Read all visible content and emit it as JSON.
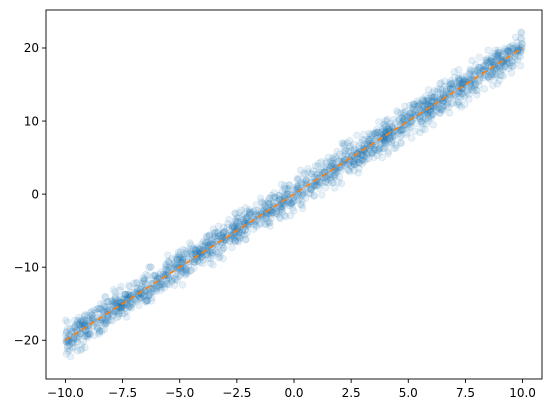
{
  "chart_data": {
    "type": "scatter",
    "title": "",
    "xlabel": "",
    "ylabel": "",
    "xlim": [
      -10.85,
      10.85
    ],
    "ylim": [
      -25.3,
      25.2
    ],
    "x_ticks": [
      -10.0,
      -7.5,
      -5.0,
      -2.5,
      0.0,
      2.5,
      5.0,
      7.5,
      10.0
    ],
    "x_tick_labels": [
      "−10.0",
      "−7.5",
      "−5.0",
      "−2.5",
      "0.0",
      "2.5",
      "5.0",
      "7.5",
      "10.0"
    ],
    "y_ticks": [
      -20,
      -10,
      0,
      10,
      20
    ],
    "y_tick_labels": [
      "−20",
      "−10",
      "0",
      "10",
      "20"
    ],
    "grid": false,
    "legend": "none",
    "series": [
      {
        "kind": "scatter",
        "color": "#1f77b4",
        "alpha": 0.1,
        "x_range": [
          -10,
          10
        ],
        "approx_relation": "y ≈ 2x",
        "band_halfwidth_y": 1.8
      },
      {
        "kind": "line",
        "style": "dashed",
        "color": "#ff7f0e",
        "x": [
          -10,
          10
        ],
        "y": [
          -20,
          20
        ]
      }
    ]
  }
}
